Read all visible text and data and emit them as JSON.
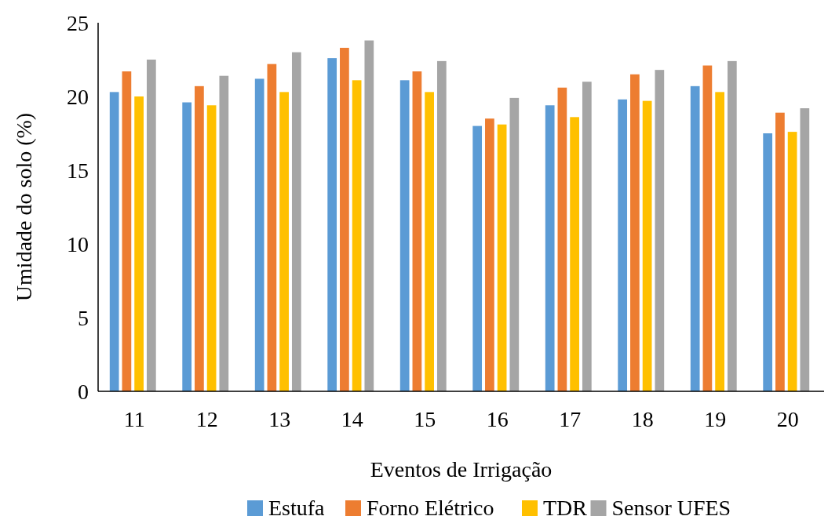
{
  "chart_data": {
    "type": "bar",
    "xlabel": "Eventos de Irrigação",
    "ylabel": "Umidade do solo (%)",
    "categories": [
      "11",
      "12",
      "13",
      "14",
      "15",
      "16",
      "17",
      "18",
      "19",
      "20"
    ],
    "series": [
      {
        "name": "Estufa",
        "color": "#5b9bd5",
        "values": [
          20.3,
          19.6,
          21.2,
          22.6,
          21.1,
          18.0,
          19.4,
          19.8,
          20.7,
          17.5
        ]
      },
      {
        "name": "Forno Elétrico",
        "color": "#ed7d31",
        "values": [
          21.7,
          20.7,
          22.2,
          23.3,
          21.7,
          18.5,
          20.6,
          21.5,
          22.1,
          18.9
        ]
      },
      {
        "name": "TDR",
        "color": "#ffc000",
        "values": [
          20.0,
          19.4,
          20.3,
          21.1,
          20.3,
          18.1,
          18.6,
          19.7,
          20.3,
          17.6
        ]
      },
      {
        "name": "Sensor UFES",
        "color": "#a5a5a5",
        "values": [
          22.5,
          21.4,
          23.0,
          23.8,
          22.4,
          19.9,
          21.0,
          21.8,
          22.4,
          19.2
        ]
      }
    ],
    "ylim": [
      0,
      25
    ],
    "yticks": [
      0,
      5,
      10,
      15,
      20,
      25
    ],
    "grid": false,
    "legend": "bottom"
  }
}
